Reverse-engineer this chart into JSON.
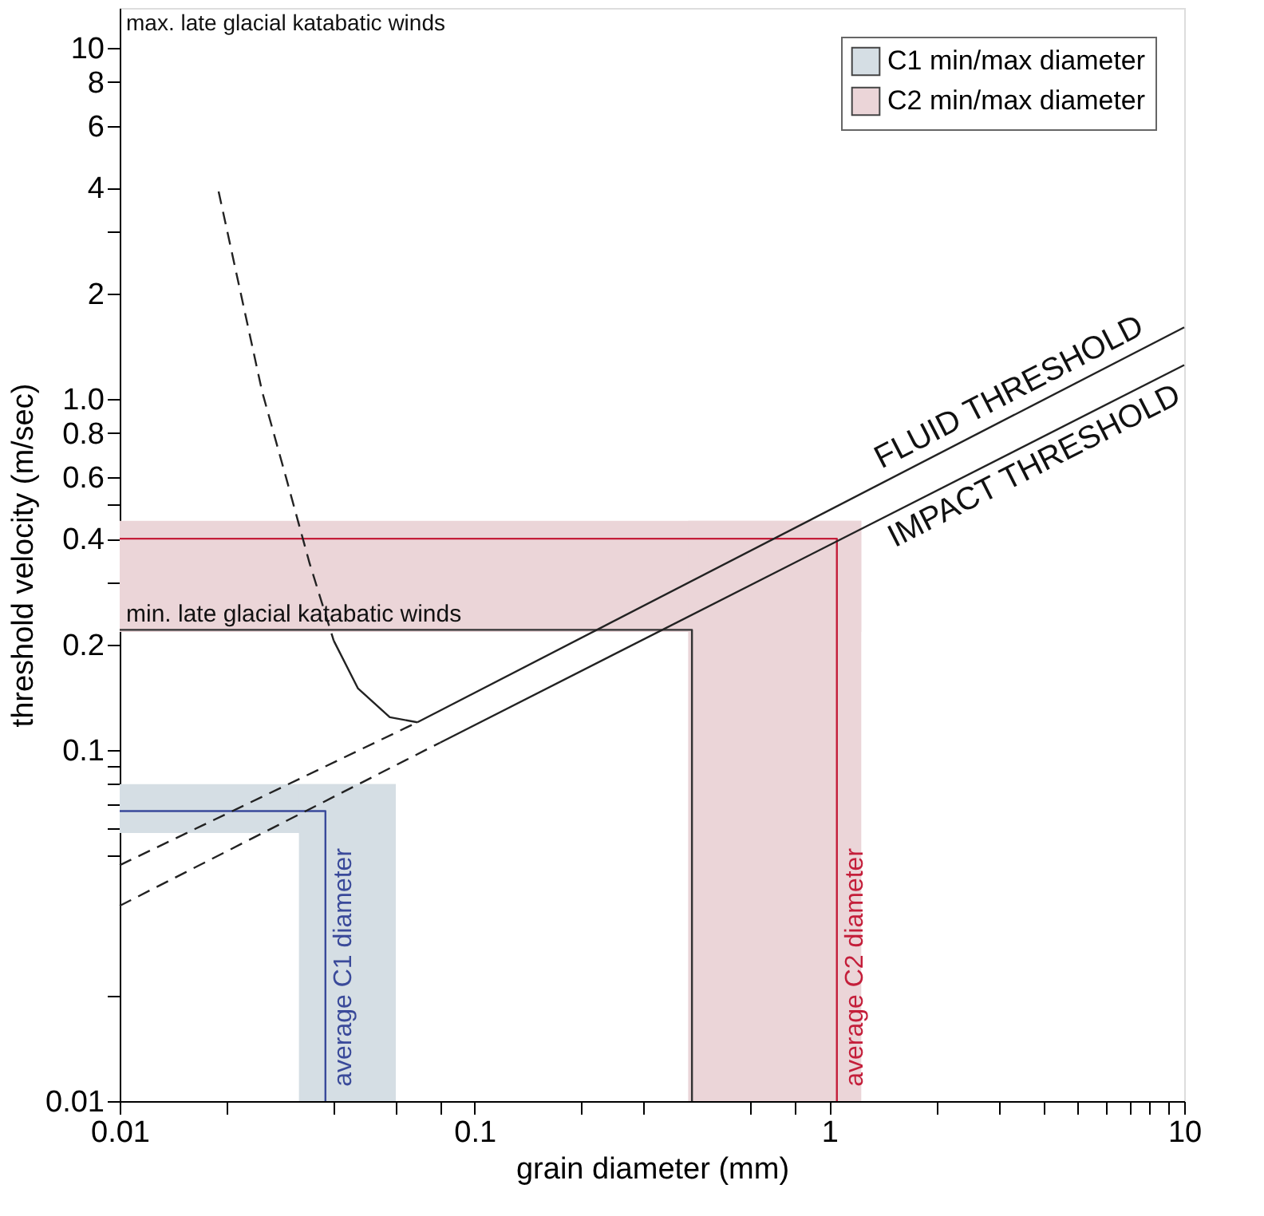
{
  "chart_data": {
    "type": "line",
    "xlabel": "grain diameter (mm)",
    "ylabel": "threshold velocity (m/sec)",
    "log": "xy",
    "grid": false,
    "legend": "top right",
    "xlim": [
      0.01,
      10
    ],
    "ylim": [
      0.01,
      13
    ],
    "xticks": [
      0.01,
      {
        "value": 0.02,
        "label": null
      },
      {
        "value": 0.04,
        "label": null
      },
      {
        "value": 0.06,
        "label": null
      },
      {
        "value": 0.08,
        "label": null
      },
      0.1,
      {
        "value": 0.2,
        "label": null
      },
      {
        "value": 0.3,
        "label": null
      },
      {
        "value": 0.6,
        "label": null
      },
      {
        "value": 0.8,
        "label": null
      },
      1,
      {
        "value": 2,
        "label": null
      },
      {
        "value": 3,
        "label": null
      },
      {
        "value": 4,
        "label": null
      },
      {
        "value": 5,
        "label": null
      },
      {
        "value": 6,
        "label": null
      },
      {
        "value": 7,
        "label": null
      },
      {
        "value": 8,
        "label": null
      },
      {
        "value": 9,
        "label": null
      },
      10
    ],
    "yticks": [
      0.01,
      {
        "value": 0.02,
        "label": null
      },
      {
        "value": 0.05,
        "label": null
      },
      {
        "value": 0.06,
        "label": null
      },
      {
        "value": 0.07,
        "label": null
      },
      {
        "value": 0.08,
        "label": null
      },
      {
        "value": 0.09,
        "label": null
      },
      0.1,
      0.2,
      {
        "value": 0.3,
        "label": null
      },
      0.4,
      {
        "value": 0.5,
        "label": null
      },
      0.6,
      0.8,
      {
        "value": 1,
        "label": "1.0"
      },
      2,
      {
        "value": 3,
        "label": null
      },
      4,
      6,
      8,
      10
    ],
    "series": [
      {
        "type": "line",
        "color": "#3a4a9a",
        "line_style": "solid",
        "x": [
          0.01,
          0.038,
          0.038
        ],
        "values": [
          0.067,
          0.067,
          0.01
        ]
      },
      {
        "type": "line",
        "color": "#c41e3a",
        "line_style": "solid",
        "x": [
          0.01,
          1.05,
          1.05
        ],
        "values": [
          0.4,
          0.4,
          0.01
        ]
      },
      {
        "type": "line",
        "color": "#333333",
        "line_style": "solid",
        "x": [
          0.01,
          0.41,
          0.41
        ],
        "values": [
          0.22,
          0.22,
          0.01
        ]
      },
      {
        "type": "line",
        "color": "#222222",
        "line_style": "dashed",
        "x": [
          0.01,
          0.069
        ],
        "values": [
          0.047,
          0.12
        ]
      },
      {
        "name": "FLUID THRESHOLD",
        "type": "line",
        "color": "#222222",
        "line_style": "solid",
        "x": [
          0.069,
          10
        ],
        "values": [
          0.12,
          1.6
        ]
      },
      {
        "type": "line",
        "color": "#222222",
        "line_style": "dashed",
        "x": [
          0.01,
          0.08
        ],
        "values": [
          0.036,
          0.105
        ]
      },
      {
        "name": "IMPACT THRESHOLD",
        "type": "line",
        "color": "#222222",
        "line_style": "solid",
        "x": [
          0.08,
          10
        ],
        "values": [
          0.105,
          1.25
        ]
      },
      {
        "type": "line",
        "color": "#222222",
        "line_style": "dashed",
        "x": [
          0.019,
          0.0252,
          0.0294,
          0.0343,
          0.0401
        ],
        "values": [
          3.9,
          1.05,
          0.6,
          0.34,
          0.205
        ]
      },
      {
        "type": "line",
        "color": "#222222",
        "line_style": "solid",
        "x": [
          0.0401,
          0.0469,
          0.0577,
          0.069
        ],
        "values": [
          0.205,
          0.15,
          0.124,
          0.12
        ]
      }
    ],
    "bands": [
      {
        "axis": "y",
        "from": 0.058,
        "to": 0.08,
        "label": "C1 min/max diameter",
        "color": "#d5dee4"
      },
      {
        "axis": "x",
        "from": 0.032,
        "to": 0.06,
        "color": "#d5dee4"
      },
      {
        "axis": "y",
        "from": 0.217,
        "to": 0.45,
        "label": "C2 min/max diameter",
        "color": "#ebd5d8"
      },
      {
        "axis": "x",
        "from": 0.4,
        "to": 1.23,
        "color": "#ebd5d8"
      }
    ],
    "annotations": [
      "max. late glacial katabatic winds",
      {
        "text": "min. late glacial katabatic winds",
        "x": 0.01,
        "y": 0.22
      },
      {
        "text": "average C1 diameter",
        "x": 0.038,
        "y": 0.011
      },
      {
        "text": "average C2 diameter",
        "x": 1.05,
        "y": 0.011
      }
    ]
  }
}
